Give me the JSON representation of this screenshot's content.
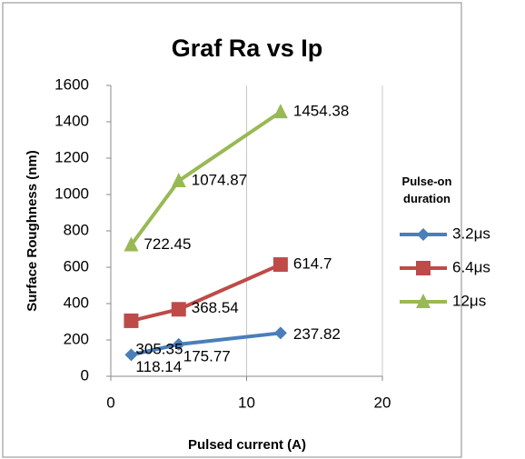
{
  "chart_data": {
    "type": "line",
    "title": "Graf Ra vs Ip",
    "x_label": "Pulsed current (A)",
    "y_label": "Surface Roughness (nm)",
    "legend_title": "Pulse-on duration",
    "legend": "right",
    "grid": true,
    "x": [
      1.5,
      5,
      12.5
    ],
    "series": [
      {
        "name": "3.2μs",
        "color": "#4a7ebb",
        "marker": "diamond",
        "values": [
          118.14,
          175.77,
          237.82
        ]
      },
      {
        "name": "6.4μs",
        "color": "#be4b48",
        "marker": "square",
        "values": [
          305.35,
          368.54,
          614.7
        ]
      },
      {
        "name": "12μs",
        "color": "#98b954",
        "marker": "triangle",
        "values": [
          722.45,
          1074.87,
          1454.38
        ]
      }
    ],
    "xlim": [
      0,
      20
    ],
    "xticks": [
      0,
      10,
      20
    ],
    "ylim": [
      0,
      1600
    ],
    "yticks": [
      0,
      200,
      400,
      600,
      800,
      1000,
      1200,
      1400,
      1600
    ]
  }
}
